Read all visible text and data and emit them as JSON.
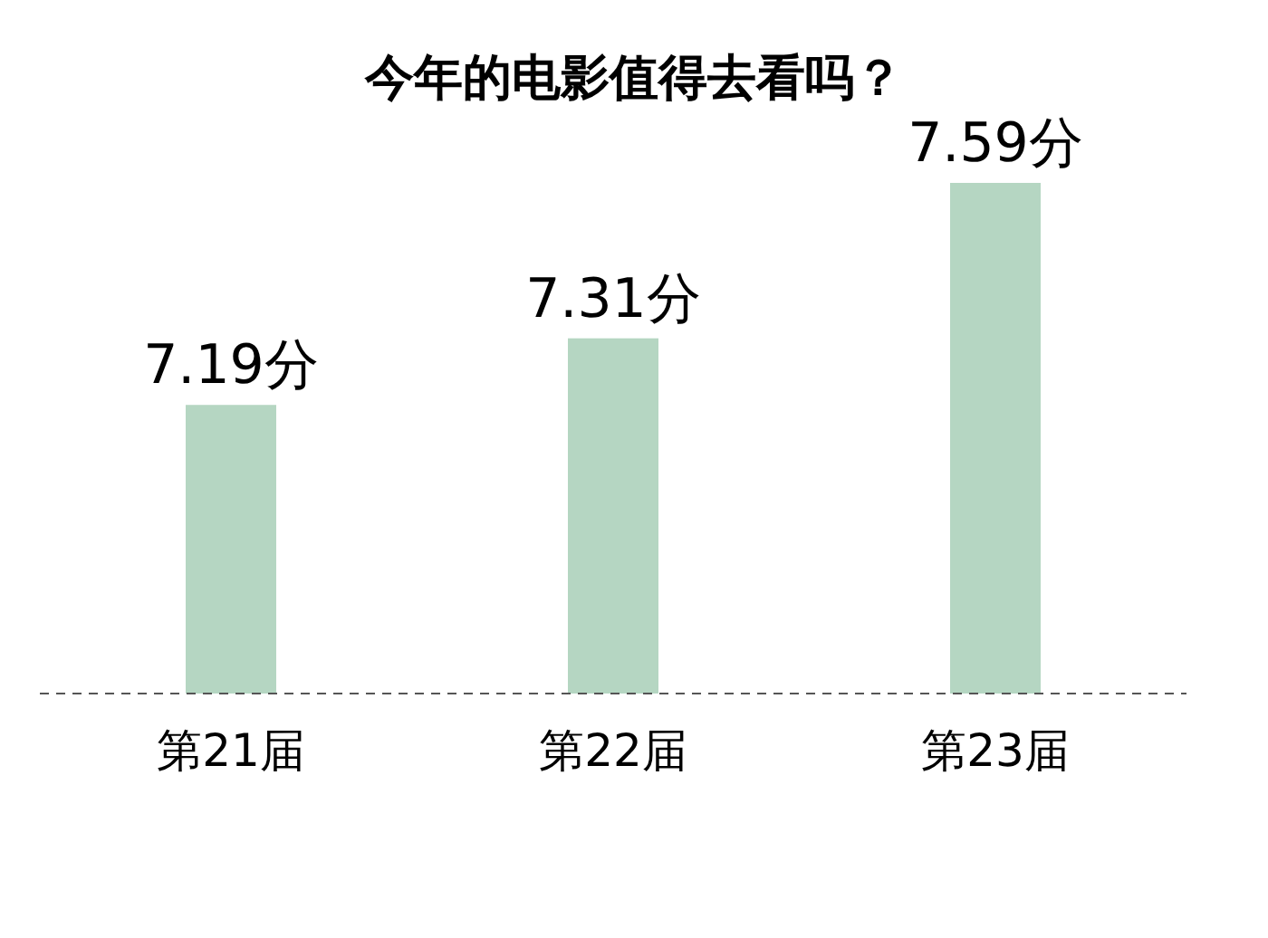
{
  "chart_data": {
    "type": "bar",
    "title": "今年的电影值得去看吗？",
    "categories": [
      "第21届",
      "第22届",
      "第23届"
    ],
    "values": [
      7.19,
      7.31,
      7.59
    ],
    "value_labels": [
      "7.19分",
      "7.31分",
      "7.59分"
    ],
    "color": "#b5d6c2",
    "ylim": [
      6.67,
      7.59
    ]
  }
}
